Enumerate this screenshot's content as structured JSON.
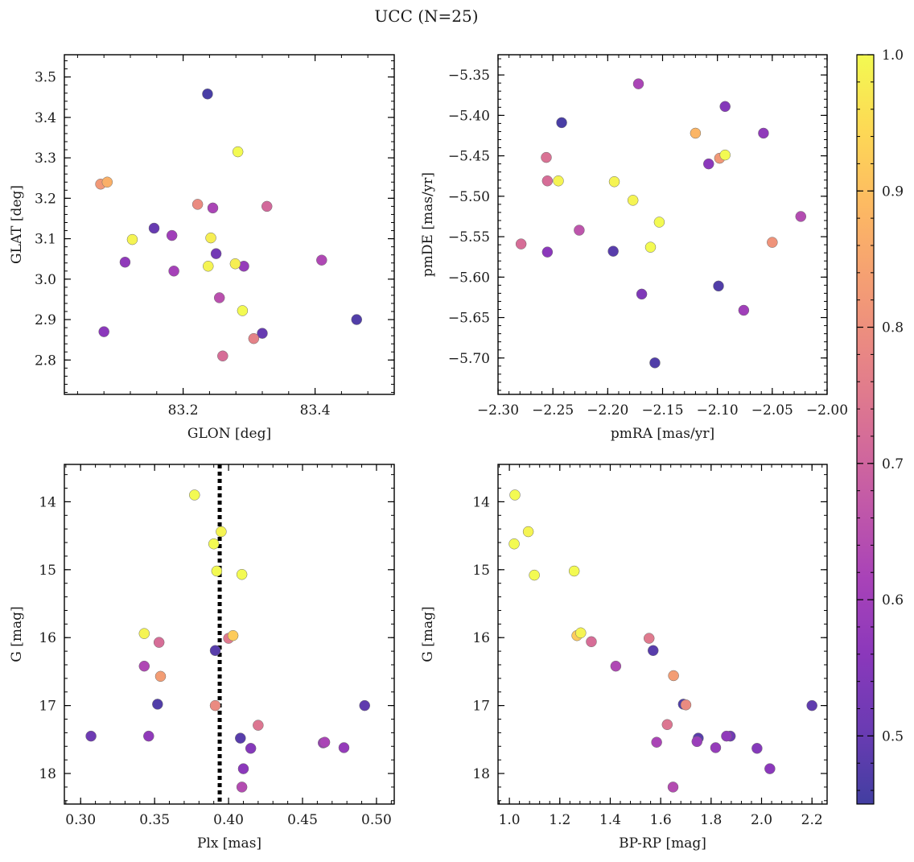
{
  "figure": {
    "title": "UCC (N=25)",
    "colorbar": {
      "min": 0.45,
      "max": 1.0,
      "ticks": [
        0.5,
        0.6,
        0.7,
        0.8,
        0.9,
        1.0
      ],
      "tick_labels": [
        "0.5",
        "0.6",
        "0.7",
        "0.8",
        "0.9",
        "1.0"
      ],
      "colormap": "plasma",
      "alpha": 0.78
    }
  },
  "chart_data": [
    {
      "type": "scatter",
      "xlabel": "GLON [deg]",
      "ylabel": "GLAT [deg]",
      "xlim": [
        83.02,
        83.52
      ],
      "ylim": [
        2.715,
        3.555
      ],
      "xticks": [
        83.2,
        83.4
      ],
      "xtick_labels": [
        "83.2",
        "83.4"
      ],
      "yticks": [
        2.8,
        2.9,
        3.0,
        3.1,
        3.2,
        3.3,
        3.4,
        3.5
      ],
      "ytick_labels": [
        "2.8",
        "2.9",
        "3.0",
        "3.1",
        "3.2",
        "3.3",
        "3.4",
        "3.5"
      ],
      "invert_y": false,
      "points": [
        {
          "x": 83.237,
          "y": 3.458,
          "c": 0.46
        },
        {
          "x": 83.283,
          "y": 3.315,
          "c": 1.0
        },
        {
          "x": 83.085,
          "y": 3.24,
          "c": 0.87
        },
        {
          "x": 83.075,
          "y": 3.235,
          "c": 0.82
        },
        {
          "x": 83.222,
          "y": 3.185,
          "c": 0.79
        },
        {
          "x": 83.245,
          "y": 3.176,
          "c": 0.62
        },
        {
          "x": 83.327,
          "y": 3.18,
          "c": 0.71
        },
        {
          "x": 83.156,
          "y": 3.126,
          "c": 0.5
        },
        {
          "x": 83.183,
          "y": 3.108,
          "c": 0.6
        },
        {
          "x": 83.123,
          "y": 3.098,
          "c": 0.99
        },
        {
          "x": 83.242,
          "y": 3.102,
          "c": 0.98
        },
        {
          "x": 83.25,
          "y": 3.063,
          "c": 0.52
        },
        {
          "x": 83.112,
          "y": 3.042,
          "c": 0.57
        },
        {
          "x": 83.238,
          "y": 3.032,
          "c": 0.99
        },
        {
          "x": 83.279,
          "y": 3.038,
          "c": 0.98
        },
        {
          "x": 83.292,
          "y": 3.032,
          "c": 0.58
        },
        {
          "x": 83.41,
          "y": 3.047,
          "c": 0.63
        },
        {
          "x": 83.186,
          "y": 3.02,
          "c": 0.61
        },
        {
          "x": 83.255,
          "y": 2.954,
          "c": 0.65
        },
        {
          "x": 83.29,
          "y": 2.922,
          "c": 1.0
        },
        {
          "x": 83.463,
          "y": 2.9,
          "c": 0.47
        },
        {
          "x": 83.08,
          "y": 2.87,
          "c": 0.56
        },
        {
          "x": 83.32,
          "y": 2.866,
          "c": 0.5
        },
        {
          "x": 83.307,
          "y": 2.853,
          "c": 0.77
        },
        {
          "x": 83.26,
          "y": 2.81,
          "c": 0.72
        }
      ]
    },
    {
      "type": "scatter",
      "xlabel": "pmRA [mas/yr]",
      "ylabel": "pmDE [mas/yr]",
      "xlim": [
        -2.3,
        -2.0
      ],
      "ylim": [
        -5.745,
        -5.325
      ],
      "xticks": [
        -2.3,
        -2.25,
        -2.2,
        -2.15,
        -2.1,
        -2.05,
        -2.0
      ],
      "xtick_labels": [
        "−2.30",
        "−2.25",
        "−2.20",
        "−2.15",
        "−2.10",
        "−2.05",
        "−2.00"
      ],
      "yticks": [
        -5.7,
        -5.65,
        -5.6,
        -5.55,
        -5.5,
        -5.45,
        -5.4,
        -5.35
      ],
      "ytick_labels": [
        "−5.70",
        "−5.65",
        "−5.60",
        "−5.55",
        "−5.50",
        "−5.45",
        "−5.40",
        "−5.35"
      ],
      "invert_y": false,
      "points": [
        {
          "x": -2.172,
          "y": -5.361,
          "c": 0.62
        },
        {
          "x": -2.093,
          "y": -5.389,
          "c": 0.55
        },
        {
          "x": -2.242,
          "y": -5.409,
          "c": 0.46
        },
        {
          "x": -2.12,
          "y": -5.422,
          "c": 0.88
        },
        {
          "x": -2.058,
          "y": -5.422,
          "c": 0.57
        },
        {
          "x": -2.093,
          "y": -5.449,
          "c": 1.0
        },
        {
          "x": -2.098,
          "y": -5.453,
          "c": 0.82
        },
        {
          "x": -2.108,
          "y": -5.46,
          "c": 0.56
        },
        {
          "x": -2.256,
          "y": -5.452,
          "c": 0.73
        },
        {
          "x": -2.255,
          "y": -5.481,
          "c": 0.72
        },
        {
          "x": -2.245,
          "y": -5.481,
          "c": 0.99
        },
        {
          "x": -2.194,
          "y": -5.482,
          "c": 0.99
        },
        {
          "x": -2.177,
          "y": -5.505,
          "c": 0.99
        },
        {
          "x": -2.024,
          "y": -5.525,
          "c": 0.64
        },
        {
          "x": -2.153,
          "y": -5.532,
          "c": 1.0
        },
        {
          "x": -2.226,
          "y": -5.542,
          "c": 0.66
        },
        {
          "x": -2.05,
          "y": -5.557,
          "c": 0.81
        },
        {
          "x": -2.279,
          "y": -5.559,
          "c": 0.72
        },
        {
          "x": -2.161,
          "y": -5.563,
          "c": 1.0
        },
        {
          "x": -2.255,
          "y": -5.569,
          "c": 0.56
        },
        {
          "x": -2.195,
          "y": -5.568,
          "c": 0.48
        },
        {
          "x": -2.099,
          "y": -5.611,
          "c": 0.47
        },
        {
          "x": -2.169,
          "y": -5.621,
          "c": 0.54
        },
        {
          "x": -2.076,
          "y": -5.641,
          "c": 0.6
        },
        {
          "x": -2.157,
          "y": -5.706,
          "c": 0.47
        }
      ]
    },
    {
      "type": "scatter",
      "xlabel": "Plx [mas]",
      "ylabel": "G [mag]",
      "xlim": [
        0.289,
        0.512
      ],
      "ylim": [
        18.45,
        13.45
      ],
      "xticks": [
        0.3,
        0.35,
        0.4,
        0.45,
        0.5
      ],
      "xtick_labels": [
        "0.30",
        "0.35",
        "0.40",
        "0.45",
        "0.50"
      ],
      "yticks": [
        14,
        15,
        16,
        17,
        18
      ],
      "ytick_labels": [
        "14",
        "15",
        "16",
        "17",
        "18"
      ],
      "invert_y": true,
      "vline": 0.394,
      "points": [
        {
          "x": 0.377,
          "y": 13.9,
          "c": 1.0
        },
        {
          "x": 0.395,
          "y": 14.44,
          "c": 0.99
        },
        {
          "x": 0.39,
          "y": 14.62,
          "c": 1.0
        },
        {
          "x": 0.392,
          "y": 15.02,
          "c": 1.0
        },
        {
          "x": 0.409,
          "y": 15.07,
          "c": 1.0
        },
        {
          "x": 0.343,
          "y": 15.94,
          "c": 0.99
        },
        {
          "x": 0.353,
          "y": 16.07,
          "c": 0.72
        },
        {
          "x": 0.4,
          "y": 16.01,
          "c": 0.75
        },
        {
          "x": 0.403,
          "y": 15.97,
          "c": 0.92
        },
        {
          "x": 0.391,
          "y": 16.19,
          "c": 0.48
        },
        {
          "x": 0.343,
          "y": 16.42,
          "c": 0.63
        },
        {
          "x": 0.354,
          "y": 16.57,
          "c": 0.83
        },
        {
          "x": 0.352,
          "y": 16.98,
          "c": 0.47
        },
        {
          "x": 0.391,
          "y": 17.0,
          "c": 0.79
        },
        {
          "x": 0.492,
          "y": 17.0,
          "c": 0.49
        },
        {
          "x": 0.42,
          "y": 17.29,
          "c": 0.74
        },
        {
          "x": 0.307,
          "y": 17.45,
          "c": 0.51
        },
        {
          "x": 0.346,
          "y": 17.45,
          "c": 0.57
        },
        {
          "x": 0.408,
          "y": 17.48,
          "c": 0.48
        },
        {
          "x": 0.465,
          "y": 17.54,
          "c": 0.62
        },
        {
          "x": 0.464,
          "y": 17.55,
          "c": 0.59
        },
        {
          "x": 0.415,
          "y": 17.63,
          "c": 0.55
        },
        {
          "x": 0.478,
          "y": 17.62,
          "c": 0.58
        },
        {
          "x": 0.41,
          "y": 17.93,
          "c": 0.56
        },
        {
          "x": 0.409,
          "y": 18.2,
          "c": 0.64
        }
      ]
    },
    {
      "type": "scatter",
      "xlabel": "BP-RP [mag]",
      "ylabel": "G [mag]",
      "xlim": [
        0.955,
        2.26
      ],
      "ylim": [
        18.45,
        13.45
      ],
      "xticks": [
        1.0,
        1.2,
        1.4,
        1.6,
        1.8,
        2.0,
        2.2
      ],
      "xtick_labels": [
        "1.0",
        "1.2",
        "1.4",
        "1.6",
        "1.8",
        "2.0",
        "2.2"
      ],
      "yticks": [
        14,
        15,
        16,
        17,
        18
      ],
      "ytick_labels": [
        "14",
        "15",
        "16",
        "17",
        "18"
      ],
      "invert_y": true,
      "points": [
        {
          "x": 1.022,
          "y": 13.9,
          "c": 1.0
        },
        {
          "x": 1.075,
          "y": 14.44,
          "c": 0.99
        },
        {
          "x": 1.019,
          "y": 14.62,
          "c": 1.0
        },
        {
          "x": 1.257,
          "y": 15.02,
          "c": 1.0
        },
        {
          "x": 1.099,
          "y": 15.08,
          "c": 1.0
        },
        {
          "x": 1.283,
          "y": 15.93,
          "c": 0.99
        },
        {
          "x": 1.268,
          "y": 15.97,
          "c": 0.92
        },
        {
          "x": 1.325,
          "y": 16.06,
          "c": 0.72
        },
        {
          "x": 1.554,
          "y": 16.01,
          "c": 0.75
        },
        {
          "x": 1.57,
          "y": 16.19,
          "c": 0.48
        },
        {
          "x": 1.422,
          "y": 16.42,
          "c": 0.63
        },
        {
          "x": 1.651,
          "y": 16.56,
          "c": 0.83
        },
        {
          "x": 1.69,
          "y": 16.98,
          "c": 0.47
        },
        {
          "x": 1.7,
          "y": 16.99,
          "c": 0.79
        },
        {
          "x": 2.2,
          "y": 17.0,
          "c": 0.49
        },
        {
          "x": 1.626,
          "y": 17.28,
          "c": 0.74
        },
        {
          "x": 1.861,
          "y": 17.45,
          "c": 0.57
        },
        {
          "x": 1.876,
          "y": 17.45,
          "c": 0.51
        },
        {
          "x": 1.749,
          "y": 17.48,
          "c": 0.48
        },
        {
          "x": 1.744,
          "y": 17.53,
          "c": 0.59
        },
        {
          "x": 1.584,
          "y": 17.54,
          "c": 0.62
        },
        {
          "x": 1.818,
          "y": 17.62,
          "c": 0.58
        },
        {
          "x": 1.982,
          "y": 17.63,
          "c": 0.55
        },
        {
          "x": 2.033,
          "y": 17.93,
          "c": 0.56
        },
        {
          "x": 1.649,
          "y": 18.2,
          "c": 0.64
        }
      ]
    }
  ]
}
